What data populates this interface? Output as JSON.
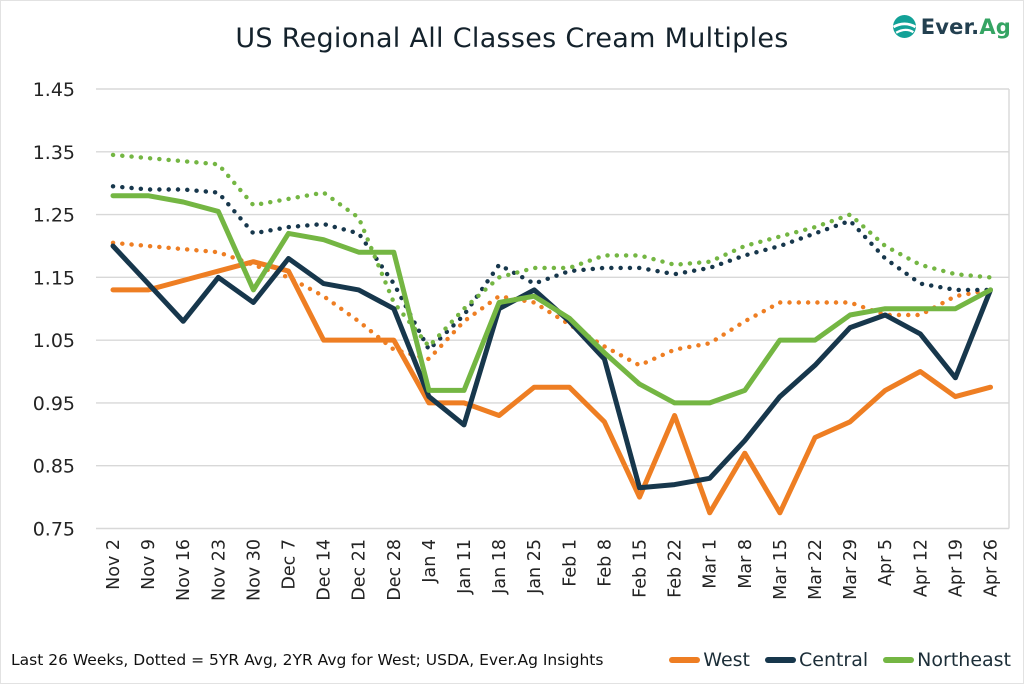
{
  "page": {
    "title": "US Regional All Classes Cream Multiples",
    "footer_note": "Last 26 Weeks, Dotted = 5YR Avg, 2YR Avg for West; USDA, Ever.Ag Insights"
  },
  "logo": {
    "brand_prefix": "Ever.",
    "brand_suffix": "Ag"
  },
  "colors": {
    "west": "#EE7E23",
    "central": "#17374C",
    "northeast": "#74B643",
    "grid": "#D8D8D8",
    "axis_text": "#242424",
    "title_text": "#14222C",
    "logo_navy": "#234050",
    "logo_teal": "#12A197",
    "logo_green": "#35A463"
  },
  "legend": {
    "items": [
      {
        "label": "West",
        "series_key": "west"
      },
      {
        "label": "Central",
        "series_key": "central"
      },
      {
        "label": "Northeast",
        "series_key": "northeast"
      }
    ]
  },
  "chart_data": {
    "type": "line",
    "title": "US Regional All Classes Cream Multiples",
    "xlabel": "",
    "ylabel": "",
    "ylim": [
      0.75,
      1.45
    ],
    "y_ticks": [
      1.45,
      1.35,
      1.25,
      1.15,
      1.05,
      0.95,
      0.85,
      0.75
    ],
    "grid": "horizontal",
    "legend_position": "bottom-right",
    "categories": [
      "Nov 2",
      "Nov 9",
      "Nov 16",
      "Nov 23",
      "Nov 30",
      "Dec 7",
      "Dec 14",
      "Dec 21",
      "Dec 28",
      "Jan 4",
      "Jan 11",
      "Jan 18",
      "Jan 25",
      "Feb 1",
      "Feb 8",
      "Feb 15",
      "Feb 22",
      "Mar 1",
      "Mar 8",
      "Mar 15",
      "Mar 22",
      "Mar 29",
      "Apr 5",
      "Apr 12",
      "Apr 19",
      "Apr 26"
    ],
    "series": [
      {
        "name": "West 2YR Avg",
        "key": "west",
        "style": "dotted",
        "color": "#EE7E23",
        "values": [
          1.205,
          1.2,
          1.195,
          1.19,
          1.17,
          1.15,
          1.12,
          1.08,
          1.035,
          1.02,
          1.08,
          1.12,
          1.11,
          1.075,
          1.04,
          1.01,
          1.035,
          1.045,
          1.08,
          1.11,
          1.11,
          1.11,
          1.09,
          1.09,
          1.12,
          1.13
        ]
      },
      {
        "name": "Central 5YR Avg",
        "key": "central",
        "style": "dotted",
        "color": "#17374C",
        "values": [
          1.295,
          1.29,
          1.29,
          1.285,
          1.22,
          1.23,
          1.235,
          1.22,
          1.14,
          1.035,
          1.09,
          1.17,
          1.14,
          1.16,
          1.165,
          1.165,
          1.155,
          1.165,
          1.185,
          1.2,
          1.22,
          1.24,
          1.18,
          1.14,
          1.13,
          1.13
        ]
      },
      {
        "name": "Northeast 5YR Avg",
        "key": "northeast",
        "style": "dotted",
        "color": "#74B643",
        "values": [
          1.345,
          1.34,
          1.335,
          1.33,
          1.265,
          1.275,
          1.285,
          1.245,
          1.11,
          1.04,
          1.1,
          1.15,
          1.165,
          1.165,
          1.185,
          1.185,
          1.17,
          1.175,
          1.2,
          1.215,
          1.23,
          1.25,
          1.2,
          1.17,
          1.155,
          1.15
        ]
      },
      {
        "name": "West",
        "key": "west",
        "style": "solid",
        "color": "#EE7E23",
        "values": [
          1.13,
          1.13,
          1.145,
          1.16,
          1.175,
          1.16,
          1.05,
          1.05,
          1.05,
          0.95,
          0.95,
          0.93,
          0.975,
          0.975,
          0.92,
          0.8,
          0.93,
          0.775,
          0.87,
          0.775,
          0.895,
          0.92,
          0.97,
          1.0,
          0.96,
          0.975
        ]
      },
      {
        "name": "Central",
        "key": "central",
        "style": "solid",
        "color": "#17374C",
        "values": [
          1.2,
          1.14,
          1.08,
          1.15,
          1.11,
          1.18,
          1.14,
          1.13,
          1.1,
          0.96,
          0.915,
          1.1,
          1.13,
          1.08,
          1.02,
          0.815,
          0.82,
          0.83,
          0.89,
          0.96,
          1.01,
          1.07,
          1.09,
          1.06,
          0.99,
          1.13
        ]
      },
      {
        "name": "Northeast",
        "key": "northeast",
        "style": "solid",
        "color": "#74B643",
        "values": [
          1.28,
          1.28,
          1.27,
          1.255,
          1.13,
          1.22,
          1.21,
          1.19,
          1.19,
          0.97,
          0.97,
          1.11,
          1.12,
          1.085,
          1.03,
          0.98,
          0.95,
          0.95,
          0.97,
          1.05,
          1.05,
          1.09,
          1.1,
          1.1,
          1.1,
          1.13
        ]
      }
    ]
  }
}
